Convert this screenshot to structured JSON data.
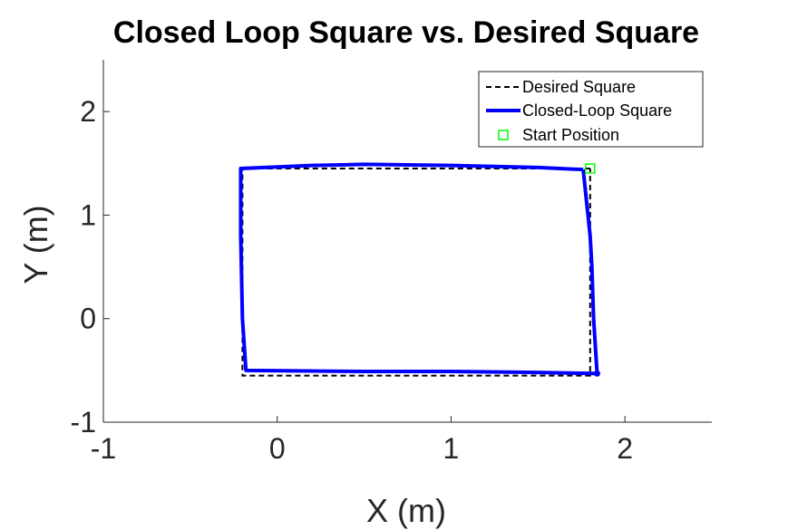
{
  "chart_data": {
    "type": "line",
    "title": "Closed Loop Square vs. Desired Square",
    "xlabel": "X (m)",
    "ylabel": "Y (m)",
    "xlim": [
      -1,
      2.5
    ],
    "ylim": [
      -1,
      2.5
    ],
    "xticks": [
      -1,
      0,
      1,
      2
    ],
    "yticks": [
      -1,
      0,
      1,
      2
    ],
    "xtick_labels": [
      "-1",
      "0",
      "1",
      "2"
    ],
    "ytick_labels": [
      "-1",
      "0",
      "1",
      "2"
    ],
    "grid": false,
    "legend": "top-right",
    "axis_color": "#262626",
    "series": [
      {
        "name": "Desired Square",
        "style": "dashed",
        "color": "#000000",
        "x": [
          1.8,
          -0.2,
          -0.2,
          1.8,
          1.8
        ],
        "y": [
          1.45,
          1.45,
          -0.55,
          -0.55,
          1.45
        ]
      },
      {
        "name": "Closed-Loop Square",
        "style": "solid",
        "color": "#0000ff",
        "x": [
          1.76,
          1.5,
          1.0,
          0.5,
          0.2,
          -0.21,
          -0.21,
          -0.2,
          -0.18,
          0.5,
          1.0,
          1.5,
          1.84,
          1.82,
          1.81,
          1.8,
          1.76
        ],
        "y": [
          1.44,
          1.46,
          1.48,
          1.49,
          1.48,
          1.45,
          0.8,
          0.0,
          -0.5,
          -0.51,
          -0.51,
          -0.52,
          -0.53,
          0.0,
          0.5,
          0.8,
          1.44
        ]
      },
      {
        "name": "Start Position",
        "style": "marker-square",
        "color": "#00ff00",
        "x": [
          1.8
        ],
        "y": [
          1.45
        ]
      }
    ],
    "end_marker": {
      "x": 1.84,
      "y": -0.53
    }
  }
}
